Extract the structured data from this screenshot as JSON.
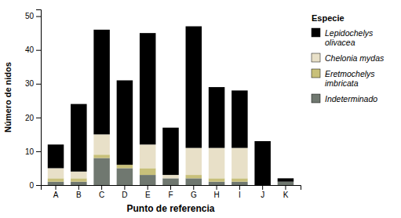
{
  "chart_data": {
    "type": "bar",
    "stacked": true,
    "categories": [
      "A",
      "B",
      "C",
      "D",
      "E",
      "F",
      "G",
      "H",
      "I",
      "J",
      "K"
    ],
    "series": [
      {
        "name": "Lepidochelys\nolivacea",
        "color": "#000000",
        "values": [
          7,
          20,
          31,
          25,
          33,
          14,
          36,
          18,
          17,
          13,
          1
        ]
      },
      {
        "name": "Chelonia mydas",
        "color": "#e8e0c8",
        "values": [
          3,
          2,
          6,
          0,
          7,
          1,
          8,
          9,
          9,
          0,
          0
        ]
      },
      {
        "name": "Eretmochelys\nimbricata",
        "color": "#c8c07a",
        "values": [
          1,
          1,
          1,
          1,
          2,
          0,
          1,
          1,
          1,
          0,
          0
        ]
      },
      {
        "name": "Indeterminado",
        "color": "#707870",
        "values": [
          1,
          1,
          8,
          5,
          3,
          2,
          2,
          1,
          1,
          0,
          1
        ]
      }
    ],
    "xlabel": "Punto de referencia",
    "ylabel": "Número de nidos",
    "legend_title": "Especie",
    "legend": "right",
    "ylim": [
      0,
      52
    ],
    "yticks": [
      0,
      10,
      20,
      30,
      40,
      50
    ],
    "grid": false
  }
}
